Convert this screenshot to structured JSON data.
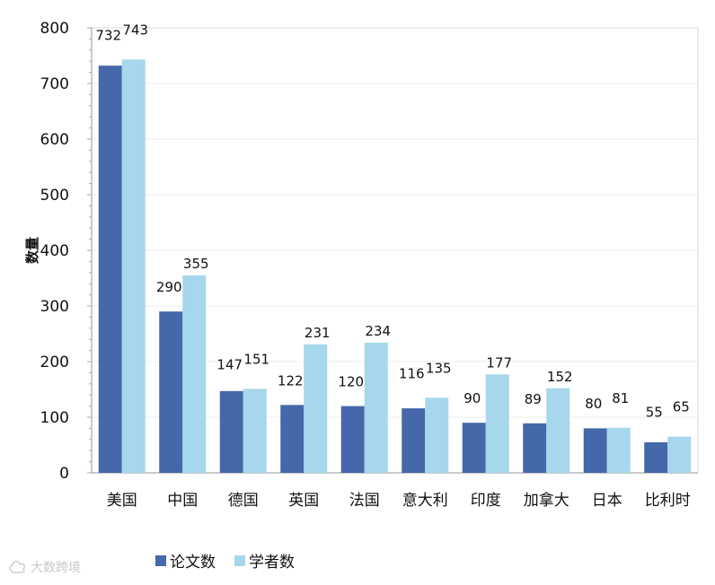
{
  "chart_data": {
    "type": "bar",
    "title": "",
    "xlabel": "",
    "ylabel": "数量",
    "ylim": [
      0,
      800
    ],
    "yticks": [
      0,
      100,
      200,
      300,
      400,
      500,
      600,
      700,
      800
    ],
    "grid": true,
    "legend_position": "bottom",
    "categories": [
      "美国",
      "中国",
      "德国",
      "英国",
      "法国",
      "意大利",
      "印度",
      "加拿大",
      "日本",
      "比利时"
    ],
    "series": [
      {
        "name": "论文数",
        "color": "#4468a9",
        "values": [
          732,
          290,
          147,
          122,
          120,
          116,
          90,
          89,
          80,
          55
        ]
      },
      {
        "name": "学者数",
        "color": "#a6d7ec",
        "values": [
          743,
          355,
          151,
          231,
          234,
          135,
          177,
          152,
          81,
          65
        ]
      }
    ]
  },
  "watermark": {
    "icon": "cloud-logo-icon",
    "text": "大数跨境"
  },
  "colors": {
    "axis": "#aaaaaa",
    "grid": "#ececec",
    "frame": "#d9d9d9"
  }
}
